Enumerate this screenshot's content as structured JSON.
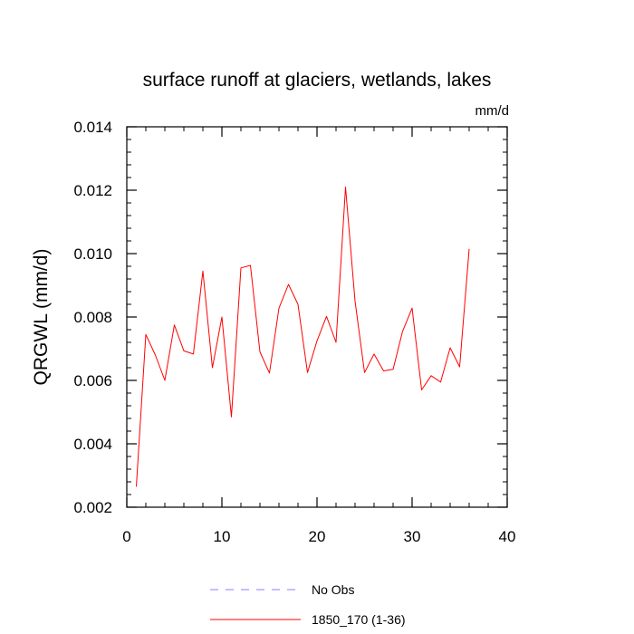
{
  "chart_data": {
    "type": "line",
    "title": "surface runoff at glaciers, wetlands, lakes",
    "units": "mm/d",
    "ylabel": "QRGWL  (mm/d)",
    "xlabel": "",
    "xlim": [
      0,
      40
    ],
    "ylim": [
      0.002,
      0.014
    ],
    "x_ticks": [
      0,
      10,
      20,
      30,
      40
    ],
    "x_tick_labels": [
      "0",
      "10",
      "20",
      "30",
      "40"
    ],
    "y_ticks": [
      0.002,
      0.004,
      0.006,
      0.008,
      0.01,
      0.012,
      0.014
    ],
    "y_tick_labels": [
      "0.002",
      "0.004",
      "0.006",
      "0.008",
      "0.010",
      "0.012",
      "0.014"
    ],
    "grid": false,
    "legend_position": "bottom",
    "series": [
      {
        "name": "1850_170 (1-36)",
        "color": "#ff0000",
        "style": "solid",
        "x": [
          1,
          2,
          3,
          4,
          5,
          6,
          7,
          8,
          9,
          10,
          11,
          12,
          13,
          14,
          15,
          16,
          17,
          18,
          19,
          20,
          21,
          22,
          23,
          24,
          25,
          26,
          27,
          28,
          29,
          30,
          31,
          32,
          33,
          34,
          35,
          36
        ],
        "y": [
          0.00265,
          0.00745,
          0.0068,
          0.006,
          0.00775,
          0.00693,
          0.00683,
          0.00945,
          0.0064,
          0.008,
          0.00485,
          0.00955,
          0.00963,
          0.0069,
          0.00623,
          0.00828,
          0.00903,
          0.0084,
          0.00625,
          0.00725,
          0.00802,
          0.0072,
          0.0121,
          0.0085,
          0.00625,
          0.00683,
          0.0063,
          0.00635,
          0.00755,
          0.00828,
          0.0057,
          0.00615,
          0.00595,
          0.00703,
          0.00643,
          0.01015
        ]
      },
      {
        "name": "No Obs",
        "color": "#8080ff",
        "style": "dashed",
        "x": [],
        "y": []
      }
    ]
  }
}
